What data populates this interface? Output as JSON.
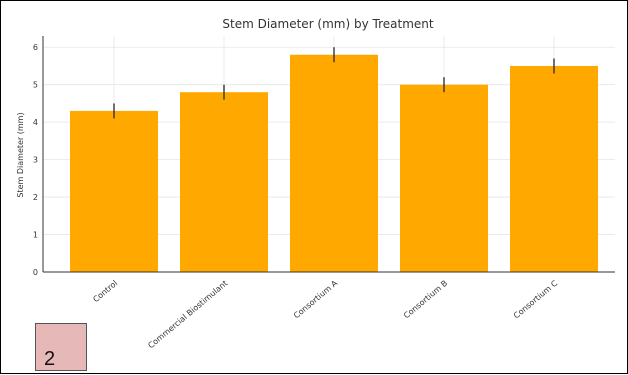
{
  "page_badge": "2",
  "colors": {
    "bar": "#FFA800",
    "error": "#333333",
    "grid": "#e6e6e6",
    "badge": "#e6b8b7"
  },
  "chart_data": {
    "type": "bar",
    "title": "Stem Diameter (mm) by Treatment",
    "xlabel": "",
    "ylabel": "Stem Diameter (mm)",
    "categories": [
      "Control",
      "Commercial Biostimulant",
      "Consortium A",
      "Consortium B",
      "Consortium C"
    ],
    "values": [
      4.3,
      4.8,
      5.8,
      5.0,
      5.5
    ],
    "errors": [
      0.2,
      0.2,
      0.2,
      0.2,
      0.2
    ],
    "ylim": [
      0,
      6.3
    ],
    "yticks": [
      0,
      1,
      2,
      3,
      4,
      5,
      6
    ],
    "grid": true
  }
}
